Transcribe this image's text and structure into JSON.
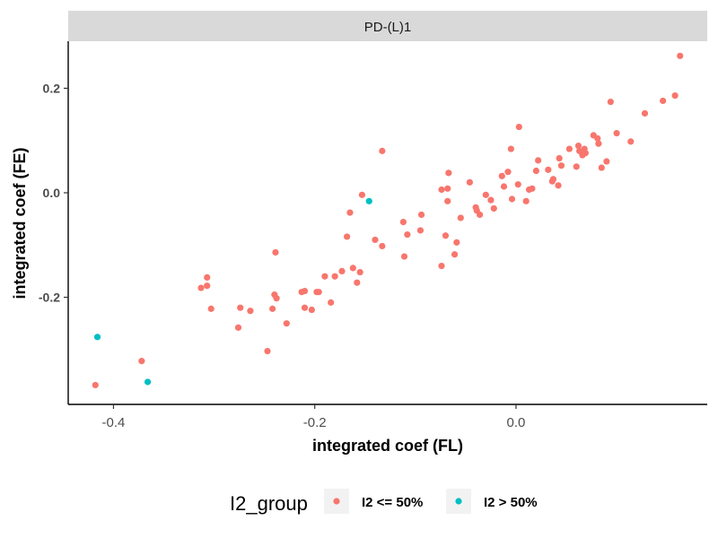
{
  "chart_data": {
    "type": "scatter",
    "facet_label": "PD-(L)1",
    "xlabel": "integrated coef (FL)",
    "ylabel": "integrated coef (FE)",
    "xlim": [
      -0.445,
      0.19
    ],
    "ylim": [
      -0.405,
      0.29
    ],
    "xticks": [
      -0.4,
      -0.2,
      0.0
    ],
    "xtick_labels": [
      "-0.4",
      "-0.2",
      "0.0"
    ],
    "yticks": [
      -0.2,
      0.0,
      0.2
    ],
    "ytick_labels": [
      "-0.2",
      "0.0",
      "0.2"
    ],
    "grid": false,
    "legend": {
      "position": "bottom",
      "title": "I2_group",
      "entries": [
        {
          "label": "I2 <= 50%",
          "color": "#F8766D"
        },
        {
          "label": "I2 > 50%",
          "color": "#00BFC4"
        }
      ]
    },
    "series": [
      {
        "name": "I2 <= 50%",
        "color": "#F8766D",
        "points": [
          [
            -0.418,
            -0.368
          ],
          [
            -0.372,
            -0.322
          ],
          [
            -0.313,
            -0.182
          ],
          [
            -0.307,
            -0.162
          ],
          [
            -0.307,
            -0.178
          ],
          [
            -0.303,
            -0.222
          ],
          [
            -0.276,
            -0.258
          ],
          [
            -0.274,
            -0.22
          ],
          [
            -0.264,
            -0.226
          ],
          [
            -0.247,
            -0.303
          ],
          [
            -0.242,
            -0.222
          ],
          [
            -0.24,
            -0.195
          ],
          [
            -0.239,
            -0.114
          ],
          [
            -0.238,
            -0.202
          ],
          [
            -0.228,
            -0.25
          ],
          [
            -0.213,
            -0.19
          ],
          [
            -0.21,
            -0.188
          ],
          [
            -0.21,
            -0.22
          ],
          [
            -0.203,
            -0.224
          ],
          [
            -0.198,
            -0.19
          ],
          [
            -0.196,
            -0.19
          ],
          [
            -0.19,
            -0.16
          ],
          [
            -0.184,
            -0.21
          ],
          [
            -0.18,
            -0.16
          ],
          [
            -0.173,
            -0.15
          ],
          [
            -0.168,
            -0.084
          ],
          [
            -0.165,
            -0.038
          ],
          [
            -0.162,
            -0.144
          ],
          [
            -0.158,
            -0.172
          ],
          [
            -0.155,
            -0.152
          ],
          [
            -0.153,
            -0.004
          ],
          [
            -0.14,
            -0.09
          ],
          [
            -0.133,
            0.08
          ],
          [
            -0.133,
            -0.102
          ],
          [
            -0.112,
            -0.056
          ],
          [
            -0.111,
            -0.122
          ],
          [
            -0.108,
            -0.08
          ],
          [
            -0.095,
            -0.072
          ],
          [
            -0.094,
            -0.042
          ],
          [
            -0.074,
            0.006
          ],
          [
            -0.074,
            -0.14
          ],
          [
            -0.07,
            -0.082
          ],
          [
            -0.068,
            0.008
          ],
          [
            -0.068,
            -0.016
          ],
          [
            -0.067,
            0.038
          ],
          [
            -0.061,
            -0.118
          ],
          [
            -0.059,
            -0.095
          ],
          [
            -0.055,
            -0.048
          ],
          [
            -0.046,
            0.02
          ],
          [
            -0.04,
            -0.028
          ],
          [
            -0.039,
            -0.034
          ],
          [
            -0.036,
            -0.042
          ],
          [
            -0.03,
            -0.004
          ],
          [
            -0.025,
            -0.014
          ],
          [
            -0.022,
            -0.03
          ],
          [
            -0.014,
            0.032
          ],
          [
            -0.012,
            0.012
          ],
          [
            -0.008,
            0.04
          ],
          [
            -0.005,
            0.084
          ],
          [
            -0.004,
            -0.012
          ],
          [
            0.002,
            0.016
          ],
          [
            0.003,
            0.126
          ],
          [
            0.01,
            -0.016
          ],
          [
            0.013,
            0.006
          ],
          [
            0.016,
            0.008
          ],
          [
            0.02,
            0.042
          ],
          [
            0.022,
            0.062
          ],
          [
            0.032,
            0.044
          ],
          [
            0.036,
            0.022
          ],
          [
            0.037,
            0.026
          ],
          [
            0.042,
            0.014
          ],
          [
            0.043,
            0.066
          ],
          [
            0.045,
            0.052
          ],
          [
            0.053,
            0.084
          ],
          [
            0.06,
            0.05
          ],
          [
            0.062,
            0.09
          ],
          [
            0.063,
            0.08
          ],
          [
            0.066,
            0.072
          ],
          [
            0.068,
            0.084
          ],
          [
            0.069,
            0.076
          ],
          [
            0.077,
            0.11
          ],
          [
            0.081,
            0.104
          ],
          [
            0.082,
            0.094
          ],
          [
            0.085,
            0.048
          ],
          [
            0.09,
            0.06
          ],
          [
            0.094,
            0.174
          ],
          [
            0.1,
            0.114
          ],
          [
            0.114,
            0.098
          ],
          [
            0.128,
            0.152
          ],
          [
            0.146,
            0.176
          ],
          [
            0.158,
            0.186
          ],
          [
            0.163,
            0.262
          ]
        ]
      },
      {
        "name": "I2 > 50%",
        "color": "#00BFC4",
        "points": [
          [
            -0.416,
            -0.276
          ],
          [
            -0.366,
            -0.362
          ],
          [
            -0.146,
            -0.016
          ]
        ]
      }
    ]
  }
}
